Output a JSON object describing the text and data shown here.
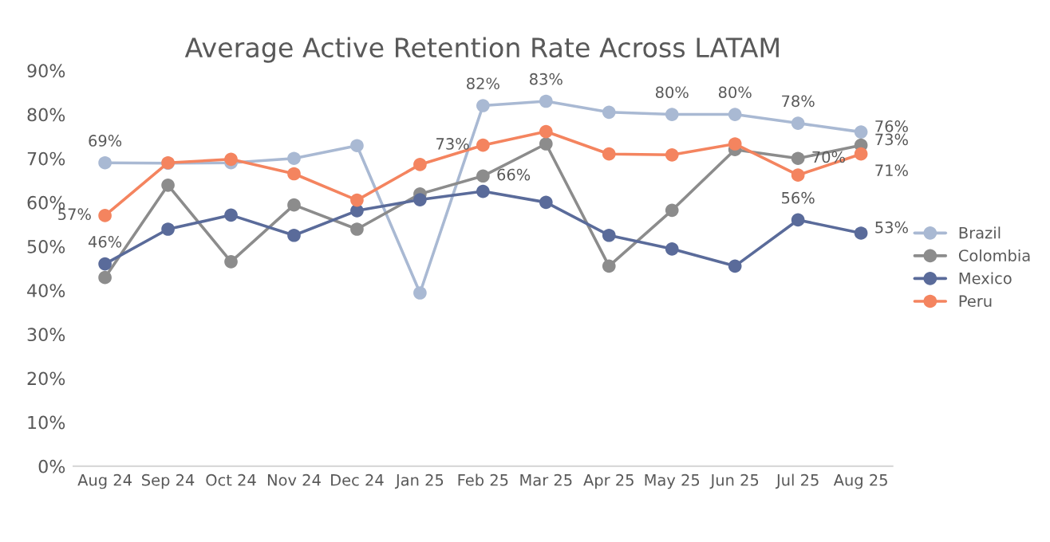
{
  "chart_data": {
    "type": "line",
    "title": "Average Active Retention Rate Across LATAM",
    "categories": [
      "Aug 24",
      "Sep 24",
      "Oct 24",
      "Nov 24",
      "Dec 24",
      "Jan 25",
      "Feb 25",
      "Mar 25",
      "Apr 25",
      "May 25",
      "Jun 25",
      "Jul 25",
      "Aug 25"
    ],
    "series": [
      {
        "name": "Brazil",
        "color": "#a9b9d3",
        "values": [
          69,
          68.9,
          69,
          70,
          72.9,
          39.4,
          82,
          83,
          80.5,
          80,
          80,
          78,
          76
        ],
        "value_labels": [
          "69%",
          null,
          null,
          null,
          null,
          null,
          "82%",
          "83%",
          null,
          "80%",
          "80%",
          "78%",
          "76%"
        ]
      },
      {
        "name": "Colombia",
        "color": "#8c8c8c",
        "values": [
          42.9,
          63.9,
          46.5,
          59.4,
          53.9,
          61.9,
          66,
          73.3,
          45.5,
          58.2,
          72,
          70,
          73
        ],
        "value_labels": [
          null,
          null,
          null,
          null,
          null,
          null,
          "66%",
          null,
          null,
          null,
          null,
          "70%",
          "73%"
        ]
      },
      {
        "name": "Mexico",
        "color": "#5a6b9a",
        "values": [
          46,
          53.9,
          57.1,
          52.5,
          58.1,
          60.6,
          62.5,
          60,
          52.5,
          49.4,
          45.5,
          56,
          53
        ],
        "value_labels": [
          "46%",
          null,
          null,
          null,
          null,
          null,
          null,
          null,
          null,
          null,
          null,
          "56%",
          "53%"
        ]
      },
      {
        "name": "Peru",
        "color": "#f4845f",
        "values": [
          57,
          69,
          69.8,
          66.5,
          60.5,
          68.6,
          73,
          76.1,
          71,
          70.8,
          73.3,
          66.2,
          71
        ],
        "value_labels": [
          "57%",
          null,
          null,
          null,
          null,
          null,
          "73%",
          null,
          null,
          null,
          null,
          null,
          "71%"
        ]
      }
    ],
    "ylim": [
      0,
      90
    ],
    "yticks": [
      {
        "value": 0,
        "label": "0%"
      },
      {
        "value": 10,
        "label": "10%"
      },
      {
        "value": 20,
        "label": "20%"
      },
      {
        "value": 30,
        "label": "30%"
      },
      {
        "value": 40,
        "label": "40%"
      },
      {
        "value": 50,
        "label": "50%"
      },
      {
        "value": 60,
        "label": "60%"
      },
      {
        "value": 70,
        "label": "70%"
      },
      {
        "value": 80,
        "label": "80%"
      },
      {
        "value": 90,
        "label": "90%"
      }
    ],
    "grid": false,
    "legend": "right",
    "marker": "circle",
    "line_style": "solid"
  }
}
